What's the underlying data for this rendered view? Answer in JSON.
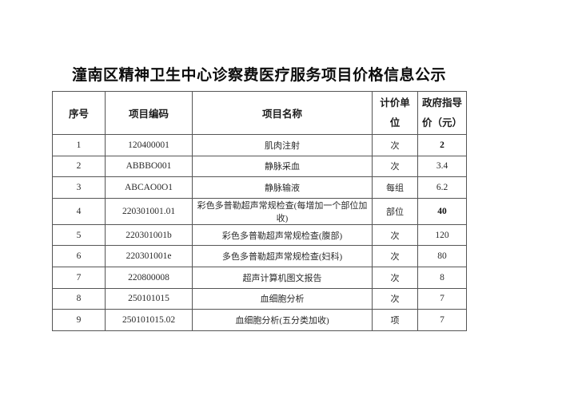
{
  "title": "潼南区精神卫生中心诊察费医疗服务项目价格信息公示",
  "table": {
    "headers": {
      "index": "序号",
      "code": "项目编码",
      "name": "项目名称",
      "unit_line1": "计价单",
      "unit_line2": "位",
      "price_line1": "政府指导",
      "price_line2": "价（元）"
    },
    "rows": [
      {
        "index": "1",
        "code": "120400001",
        "name": "肌肉注射",
        "unit": "次",
        "price": "2",
        "price_bold": true
      },
      {
        "index": "2",
        "code": "ABBBO001",
        "name": "静脉采血",
        "unit": "次",
        "price": "3.4",
        "price_bold": false
      },
      {
        "index": "3",
        "code": "ABCAO0O1",
        "name": "静脉输液",
        "unit": "每组",
        "price": "6.2",
        "price_bold": false
      },
      {
        "index": "4",
        "code": "220301001.01",
        "name": "彩色多普勒超声常规检查(每增加一个部位加收)",
        "unit": "部位",
        "price": "40",
        "price_bold": true
      },
      {
        "index": "5",
        "code": "220301001b",
        "name": "彩色多普勒超声常规检查(腹部)",
        "unit": "次",
        "price": "120",
        "price_bold": false
      },
      {
        "index": "6",
        "code": "220301001e",
        "name": "多色多普勒超声常规检查(妇科)",
        "unit": "次",
        "price": "80",
        "price_bold": false
      },
      {
        "index": "7",
        "code": "220800008",
        "name": "超声计算机图文报告",
        "unit": "次",
        "price": "8",
        "price_bold": false
      },
      {
        "index": "8",
        "code": "250101015",
        "name": "血细胞分析",
        "unit": "次",
        "price": "7",
        "price_bold": false
      },
      {
        "index": "9",
        "code": "250101015.02",
        "name": "血细胞分析(五分类加收)",
        "unit": "项",
        "price": "7",
        "price_bold": false
      }
    ]
  }
}
